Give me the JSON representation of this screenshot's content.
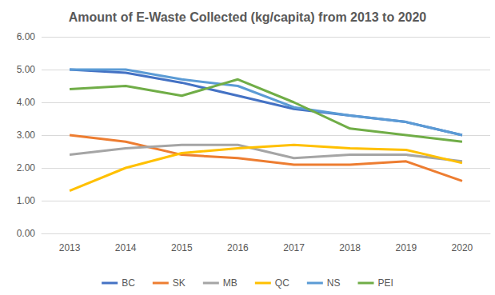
{
  "chart_data": {
    "type": "line",
    "title": "Amount of E-Waste Collected (kg/capita) from 2013 to 2020",
    "categories": [
      "2013",
      "2014",
      "2015",
      "2016",
      "2017",
      "2018",
      "2019",
      "2020"
    ],
    "series": [
      {
        "name": "BC",
        "color": "#4472c4",
        "values": [
          5.0,
          4.9,
          4.6,
          4.2,
          3.8,
          3.6,
          3.4,
          3.0
        ]
      },
      {
        "name": "SK",
        "color": "#ed7d31",
        "values": [
          3.0,
          2.8,
          2.4,
          2.3,
          2.1,
          2.1,
          2.2,
          1.6
        ]
      },
      {
        "name": "MB",
        "color": "#a5a5a5",
        "values": [
          2.4,
          2.6,
          2.7,
          2.7,
          2.3,
          2.4,
          2.4,
          2.2
        ]
      },
      {
        "name": "QC",
        "color": "#ffc000",
        "values": [
          1.3,
          2.0,
          2.45,
          2.6,
          2.7,
          2.6,
          2.55,
          2.15
        ]
      },
      {
        "name": "NS",
        "color": "#5b9bd5",
        "values": [
          5.0,
          5.0,
          4.7,
          4.5,
          3.85,
          3.6,
          3.4,
          3.0
        ]
      },
      {
        "name": "PEI",
        "color": "#70ad47",
        "values": [
          4.4,
          4.5,
          4.2,
          4.7,
          4.0,
          3.2,
          3.0,
          2.8
        ]
      }
    ],
    "ylim": [
      0,
      6
    ],
    "yticks": [
      {
        "value": 0,
        "label": "0.00"
      },
      {
        "value": 1,
        "label": "1.00"
      },
      {
        "value": 2,
        "label": "2.00"
      },
      {
        "value": 3,
        "label": "3.00"
      },
      {
        "value": 4,
        "label": "4.00"
      },
      {
        "value": 5,
        "label": "5.00"
      },
      {
        "value": 6,
        "label": "6.00"
      }
    ],
    "grid": true,
    "legend": "bottom",
    "marker": "none"
  }
}
